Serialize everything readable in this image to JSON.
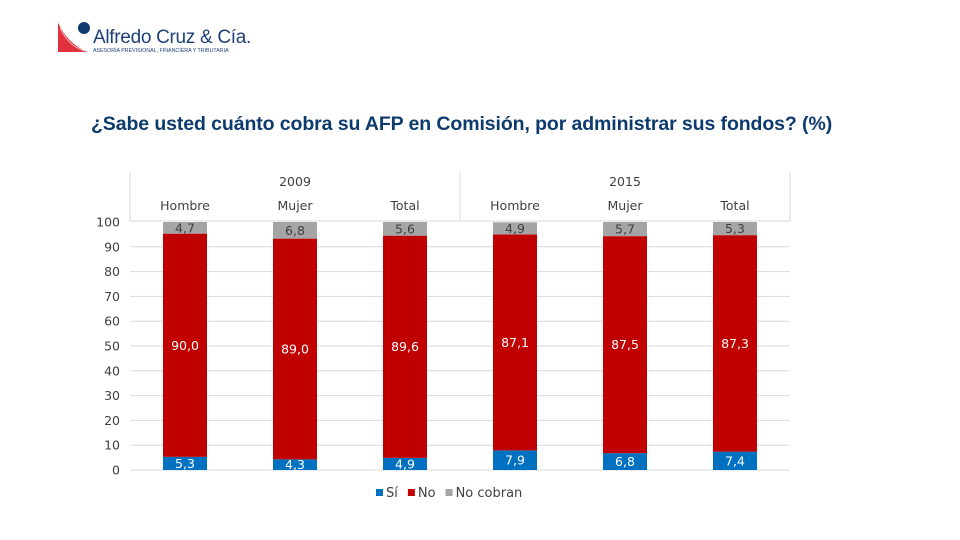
{
  "logo": {
    "name": "Alfredo Cruz & Cía.",
    "tagline": "ASESORÍA PREVISIONAL, FINANCIERA Y TRIBUTARIA",
    "colors": {
      "red": "#e2313e",
      "navy": "#0d3b6e"
    }
  },
  "title": "¿Sabe usted cuánto cobra su AFP en Comisión, por administrar sus fondos? (%)",
  "chart_data": {
    "type": "bar",
    "stacked": true,
    "title": "¿Sabe usted cuánto cobra su AFP en Comisión, por administrar sus fondos? (%)",
    "xlabel": "",
    "ylabel": "",
    "ylim": [
      0,
      100
    ],
    "yticks": [
      0,
      10,
      20,
      30,
      40,
      50,
      60,
      70,
      80,
      90,
      100
    ],
    "grid": true,
    "legend_position": "bottom",
    "groups": [
      {
        "label": "2009",
        "categories": [
          "Hombre",
          "Mujer",
          "Total"
        ]
      },
      {
        "label": "2015",
        "categories": [
          "Hombre",
          "Mujer",
          "Total"
        ]
      }
    ],
    "categories": [
      "Hombre",
      "Mujer",
      "Total",
      "Hombre",
      "Mujer",
      "Total"
    ],
    "series": [
      {
        "name": "Sí",
        "color": "#0070c0",
        "values": [
          5.3,
          4.3,
          4.9,
          7.9,
          6.8,
          7.4
        ],
        "labels": [
          "5,3",
          "4,3",
          "4,9",
          "7,9",
          "6,8",
          "7,4"
        ]
      },
      {
        "name": "No",
        "color": "#c00000",
        "values": [
          90.0,
          89.0,
          89.6,
          87.1,
          87.5,
          87.3
        ],
        "labels": [
          "90,0",
          "89,0",
          "89,6",
          "87,1",
          "87,5",
          "87,3"
        ]
      },
      {
        "name": "No cobran",
        "color": "#a5a5a5",
        "values": [
          4.7,
          6.8,
          5.6,
          4.9,
          5.7,
          5.3
        ],
        "labels": [
          "4,7",
          "6,8",
          "5,6",
          "4,9",
          "5,7",
          "5,3"
        ]
      }
    ]
  }
}
